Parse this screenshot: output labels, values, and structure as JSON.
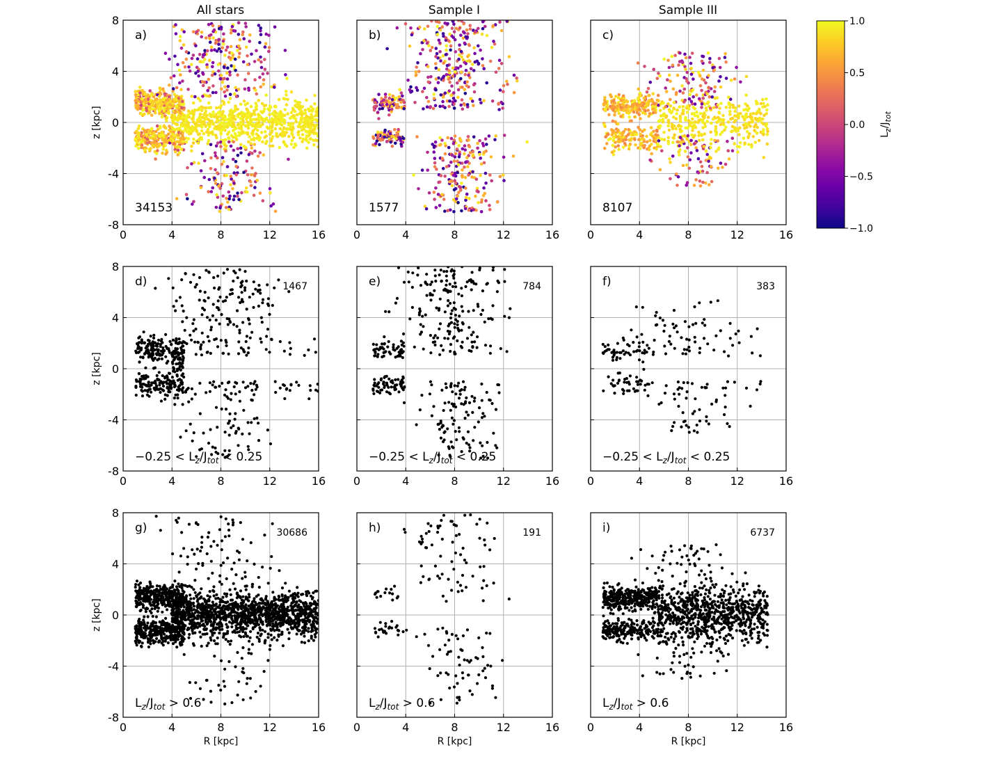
{
  "chart_data": {
    "type": "scatter",
    "figure": "Spatial distribution of stars in the R-z plane, colour-coded by Lz/Jtot, for all stars and two samples",
    "columns": [
      "All stars",
      "Sample I",
      "Sample III"
    ],
    "x_axis": {
      "label": "R [kpc]",
      "range": [
        0,
        16
      ],
      "ticks": [
        "0",
        "4",
        "8",
        "12",
        "16"
      ]
    },
    "y_axis": {
      "label": "z [kpc]",
      "range": [
        -8,
        8
      ],
      "ticks": [
        "8",
        "4",
        "0",
        "-4",
        "-8"
      ]
    },
    "colorbar": {
      "label": "Lz/Jtot",
      "label_main": "L",
      "label_sub1": "z",
      "label_mid": "/J",
      "label_sub2": "tot",
      "range": [
        -1.0,
        1.0
      ],
      "ticks": [
        "1.0",
        "0.5",
        "0.0",
        "−0.5",
        "−1.0"
      ],
      "colors": [
        "#0d0887",
        "#41049d",
        "#6a00a8",
        "#8f0da4",
        "#b12a90",
        "#cc4778",
        "#e16462",
        "#f2844b",
        "#fca636",
        "#fcce25",
        "#f0f921"
      ]
    },
    "panels": [
      {
        "id": "a",
        "label": "a)",
        "count": "34153",
        "condition": "",
        "colored": true,
        "subset": "all",
        "population": "all"
      },
      {
        "id": "b",
        "label": "b)",
        "count": "1577",
        "condition": "",
        "colored": true,
        "subset": "all",
        "population": "s1"
      },
      {
        "id": "c",
        "label": "c)",
        "count": "8107",
        "condition": "",
        "colored": true,
        "subset": "all",
        "population": "s3"
      },
      {
        "id": "d",
        "label": "d)",
        "count": "1467",
        "condition": "−0.25 < Lz/Jtot < 0.25",
        "colored": false,
        "subset": "mid",
        "population": "all"
      },
      {
        "id": "e",
        "label": "e)",
        "count": "784",
        "condition": "−0.25 < Lz/Jtot < 0.25",
        "colored": false,
        "subset": "mid",
        "population": "s1"
      },
      {
        "id": "f",
        "label": "f)",
        "count": "383",
        "condition": "−0.25 < Lz/Jtot < 0.25",
        "colored": false,
        "subset": "mid",
        "population": "s3"
      },
      {
        "id": "g",
        "label": "g)",
        "count": "30686",
        "condition": "Lz/Jtot > 0.6",
        "colored": false,
        "subset": "high",
        "population": "all"
      },
      {
        "id": "h",
        "label": "h)",
        "count": "191",
        "condition": "Lz/Jtot > 0.6",
        "colored": false,
        "subset": "high",
        "population": "s1"
      },
      {
        "id": "i",
        "label": "i)",
        "count": "6737",
        "condition": "Lz/Jtot > 0.6",
        "colored": false,
        "subset": "high",
        "population": "s3"
      }
    ],
    "condition_parts": {
      "mid": {
        "pre": "−0.25 <  L",
        "sub1": "z",
        "mid": "/J",
        "sub2": "tot",
        "post": "  < 0.25"
      },
      "high": {
        "pre": "L",
        "sub1": "z",
        "mid": "/J",
        "sub2": "tot",
        "post": " > 0.6"
      }
    }
  }
}
